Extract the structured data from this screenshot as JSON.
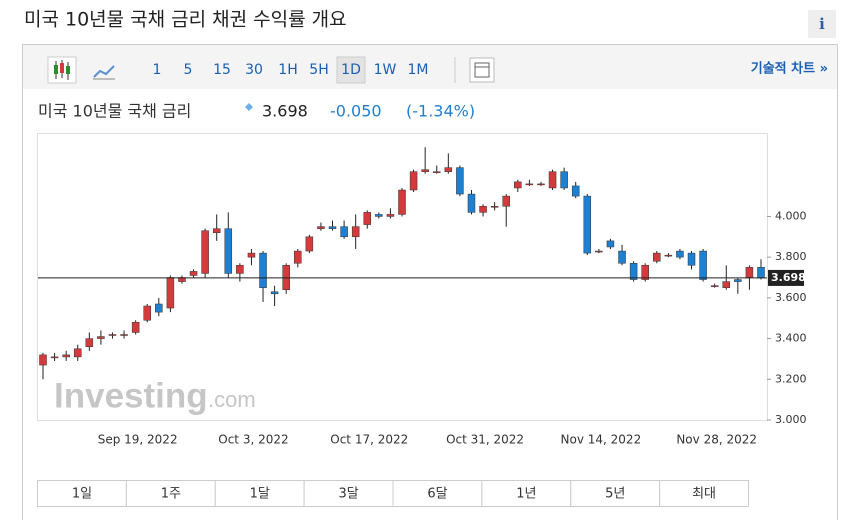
{
  "page": {
    "title": "미국 10년물 국채 금리  채권 수익률 개요",
    "info": "i"
  },
  "toolbar": {
    "intervals": [
      "1",
      "5",
      "15",
      "30",
      "1H",
      "5H",
      "1D",
      "1W",
      "1M"
    ],
    "active": "1D",
    "link": "기술적 차트 »"
  },
  "header": {
    "name": "미국 10년물 국채 금리",
    "price": "3.698",
    "change": "-0.050",
    "change_pct": "(-1.34%)"
  },
  "watermark": {
    "brand": "Investing",
    "suffix": ".com"
  },
  "ranges": [
    "1일",
    "1주",
    "1달",
    "3달",
    "6달",
    "1년",
    "5년",
    "최대"
  ],
  "chart_data": {
    "type": "candlestick",
    "categories": [
      null,
      null,
      null,
      null,
      null,
      null,
      null,
      null,
      "Sep 19, 2022",
      null,
      null,
      null,
      null,
      null,
      null,
      null,
      null,
      null,
      "Oct 3, 2022",
      null,
      null,
      null,
      null,
      null,
      null,
      null,
      null,
      null,
      "Oct 17, 2022",
      null,
      null,
      null,
      null,
      null,
      null,
      null,
      null,
      null,
      "Oct 31, 2022",
      null,
      null,
      null,
      null,
      null,
      null,
      null,
      null,
      null,
      "Nov 14, 2022",
      null,
      null,
      null,
      null,
      null,
      null,
      null,
      null,
      null,
      "Nov 28, 2022",
      null,
      null,
      null,
      null
    ],
    "open": [
      3.27,
      3.31,
      3.31,
      3.31,
      3.36,
      3.4,
      3.42,
      3.42,
      3.43,
      3.49,
      3.57,
      3.55,
      3.68,
      3.71,
      3.72,
      3.92,
      3.94,
      3.72,
      3.8,
      3.82,
      3.63,
      3.64,
      3.77,
      3.83,
      3.94,
      3.95,
      3.95,
      3.9,
      3.96,
      4.01,
      4.0,
      4.01,
      4.13,
      4.22,
      4.22,
      4.22,
      4.24,
      4.11,
      4.02,
      4.05,
      4.05,
      4.14,
      4.16,
      4.16,
      4.14,
      4.22,
      4.15,
      4.1,
      3.83,
      3.88,
      3.83,
      3.77,
      3.69,
      3.78,
      3.81,
      3.83,
      3.82,
      3.83,
      3.66,
      3.65,
      3.69,
      3.7,
      3.75
    ],
    "high": [
      3.33,
      3.33,
      3.34,
      3.37,
      3.43,
      3.44,
      3.43,
      3.44,
      3.49,
      3.57,
      3.6,
      3.71,
      3.71,
      3.74,
      3.94,
      4.01,
      4.02,
      3.77,
      3.84,
      3.83,
      3.66,
      3.77,
      3.84,
      3.91,
      3.97,
      3.98,
      3.98,
      4.01,
      4.03,
      4.02,
      4.04,
      4.14,
      4.23,
      4.34,
      4.25,
      4.31,
      4.25,
      4.13,
      4.06,
      4.07,
      4.11,
      4.18,
      4.18,
      4.17,
      4.23,
      4.24,
      4.17,
      4.11,
      3.84,
      3.89,
      3.86,
      3.78,
      3.77,
      3.83,
      3.82,
      3.84,
      3.83,
      3.84,
      3.67,
      3.76,
      3.7,
      3.76,
      3.79
    ],
    "low": [
      3.2,
      3.29,
      3.29,
      3.29,
      3.34,
      3.37,
      3.4,
      3.4,
      3.42,
      3.48,
      3.51,
      3.53,
      3.67,
      3.7,
      3.7,
      3.88,
      3.7,
      3.68,
      3.76,
      3.58,
      3.56,
      3.62,
      3.75,
      3.82,
      3.93,
      3.93,
      3.89,
      3.84,
      3.94,
      3.99,
      3.99,
      4.0,
      4.12,
      4.21,
      4.21,
      4.21,
      4.1,
      4.01,
      4.0,
      4.03,
      3.95,
      4.12,
      4.15,
      4.15,
      4.13,
      4.13,
      4.09,
      3.81,
      3.82,
      3.84,
      3.76,
      3.68,
      3.68,
      3.77,
      3.8,
      3.79,
      3.74,
      3.68,
      3.65,
      3.64,
      3.62,
      3.64,
      3.69
    ],
    "close": [
      3.32,
      3.31,
      3.32,
      3.35,
      3.4,
      3.41,
      3.42,
      3.42,
      3.48,
      3.56,
      3.53,
      3.7,
      3.7,
      3.73,
      3.93,
      3.94,
      3.72,
      3.76,
      3.82,
      3.65,
      3.62,
      3.76,
      3.83,
      3.9,
      3.95,
      3.94,
      3.9,
      3.95,
      4.02,
      4.0,
      4.01,
      4.13,
      4.22,
      4.23,
      4.22,
      4.24,
      4.11,
      4.02,
      4.05,
      4.05,
      4.1,
      4.17,
      4.16,
      4.16,
      4.22,
      4.14,
      4.1,
      3.82,
      3.83,
      3.85,
      3.77,
      3.69,
      3.76,
      3.82,
      3.81,
      3.8,
      3.76,
      3.69,
      3.66,
      3.68,
      3.68,
      3.75,
      3.698
    ],
    "up_color": "#d23b3b",
    "down_color": "#1f7fd0",
    "ylim": [
      3.0,
      4.41
    ],
    "yticks": [
      {
        "value": 3.0,
        "label": "3.000"
      },
      {
        "value": 3.2,
        "label": "3.200"
      },
      {
        "value": 3.4,
        "label": "3.400"
      },
      {
        "value": 3.6,
        "label": "3.600"
      },
      {
        "value": 3.8,
        "label": "3.800"
      },
      {
        "value": 4.0,
        "label": "4.000"
      }
    ]
  }
}
